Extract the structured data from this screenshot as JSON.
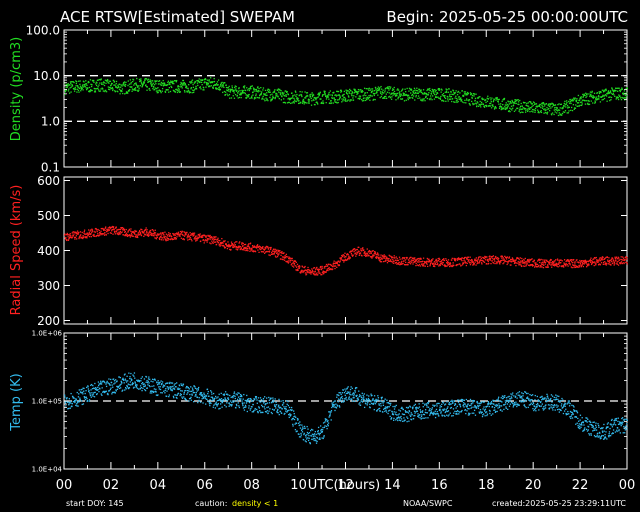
{
  "header": {
    "title": "ACE RTSW[Estimated] SWEPAM",
    "begin": "Begin: 2025-05-25 00:00:00UTC"
  },
  "footer": {
    "start_doy": "start DOY: 145",
    "caution_label": "caution:",
    "caution_value": "density < 1",
    "source": "NOAA/SWPC",
    "created": "created:2025-05-25 23:29:11UTC"
  },
  "colors": {
    "background": "#000000",
    "axes": "#ffffff",
    "density": "#22dd22",
    "speed": "#ff2020",
    "temp": "#33bbee",
    "caution": "#ffff00"
  },
  "chart_data": [
    {
      "type": "scatter",
      "name": "density",
      "ylabel": "Density (p/cm3)",
      "yscale": "log",
      "ylim": [
        0.1,
        100
      ],
      "yticks": [
        "0.1",
        "1.0",
        "10.0",
        "100.0"
      ],
      "dashed_lines": [
        1,
        10
      ],
      "xlim": [
        0,
        24
      ],
      "x": [
        0,
        0.5,
        1,
        1.5,
        2,
        2.5,
        3,
        3.5,
        4,
        4.5,
        5,
        5.5,
        6,
        6.5,
        7,
        7.5,
        8,
        8.5,
        9,
        9.5,
        10,
        10.5,
        11,
        11.5,
        12,
        12.5,
        13,
        13.5,
        14,
        14.5,
        15,
        15.5,
        16,
        16.5,
        17,
        17.5,
        18,
        18.5,
        19,
        19.5,
        20,
        20.5,
        21,
        21.5,
        22,
        22.5,
        23,
        23.5
      ],
      "y": [
        5.5,
        6,
        6,
        6.5,
        6,
        5.5,
        6.5,
        6.5,
        6,
        6,
        6,
        6,
        7,
        7,
        4.5,
        4.5,
        4.5,
        4,
        4,
        3.5,
        3.5,
        3.2,
        3.5,
        3.5,
        3.8,
        4,
        4,
        4.5,
        4.2,
        4,
        4,
        4,
        4,
        3.8,
        3.5,
        3,
        2.8,
        2.5,
        2.3,
        2.2,
        2,
        2,
        1.8,
        2.2,
        3,
        3.5,
        3.8,
        4.2
      ],
      "scatter_spread": 0.14
    },
    {
      "type": "scatter",
      "name": "radial_speed",
      "ylabel": "Radial Speed (km/s)",
      "yscale": "linear",
      "ylim": [
        190,
        610
      ],
      "yticks": [
        200,
        300,
        400,
        500,
        600
      ],
      "xlim": [
        0,
        24
      ],
      "x": [
        0,
        0.5,
        1,
        1.5,
        2,
        2.5,
        3,
        3.5,
        4,
        4.5,
        5,
        5.5,
        6,
        6.5,
        7,
        7.5,
        8,
        8.5,
        9,
        9.5,
        10,
        10.5,
        11,
        11.5,
        12,
        12.5,
        13,
        13.5,
        14,
        14.5,
        15,
        15.5,
        16,
        16.5,
        17,
        17.5,
        18,
        18.5,
        19,
        19.5,
        20,
        20.5,
        21,
        21.5,
        22,
        22.5,
        23,
        23.5
      ],
      "y": [
        440,
        445,
        450,
        455,
        460,
        455,
        450,
        455,
        445,
        440,
        445,
        440,
        435,
        430,
        415,
        415,
        410,
        405,
        395,
        380,
        350,
        340,
        345,
        360,
        385,
        400,
        395,
        380,
        375,
        372,
        370,
        368,
        368,
        368,
        370,
        372,
        375,
        375,
        372,
        368,
        366,
        364,
        366,
        364,
        365,
        370,
        372,
        372
      ],
      "scatter_spread": 12
    },
    {
      "type": "scatter",
      "name": "temperature",
      "ylabel": "Temp (K)",
      "yscale": "log",
      "ylim": [
        10000,
        1000000
      ],
      "yticks": [
        "1.0E+04",
        "1.0E+05",
        "1.0E+06"
      ],
      "dashed_lines": [
        100000
      ],
      "xlim": [
        0,
        24
      ],
      "x": [
        0,
        0.5,
        1,
        1.5,
        2,
        2.5,
        3,
        3.5,
        4,
        4.5,
        5,
        5.5,
        6,
        6.5,
        7,
        7.5,
        8,
        8.5,
        9,
        9.5,
        10,
        10.5,
        11,
        11.5,
        12,
        12.5,
        13,
        13.5,
        14,
        14.5,
        15,
        15.5,
        16,
        16.5,
        17,
        17.5,
        18,
        18.5,
        19,
        19.5,
        20,
        20.5,
        21,
        21.5,
        22,
        22.5,
        23,
        23.5
      ],
      "y": [
        100000,
        110000,
        130000,
        150000,
        170000,
        190000,
        210000,
        180000,
        160000,
        150000,
        140000,
        130000,
        120000,
        100000,
        110000,
        100000,
        90000,
        90000,
        85000,
        80000,
        40000,
        30000,
        35000,
        90000,
        140000,
        120000,
        100000,
        90000,
        70000,
        65000,
        70000,
        75000,
        75000,
        80000,
        85000,
        80000,
        75000,
        90000,
        100000,
        110000,
        95000,
        100000,
        95000,
        80000,
        50000,
        40000,
        35000,
        45000
      ],
      "scatter_spread": 0.12
    }
  ],
  "x_axis": {
    "label": "UTC(hours)",
    "ticks": [
      "00",
      "02",
      "04",
      "06",
      "08",
      "10",
      "12",
      "14",
      "16",
      "18",
      "20",
      "22",
      "00"
    ]
  }
}
